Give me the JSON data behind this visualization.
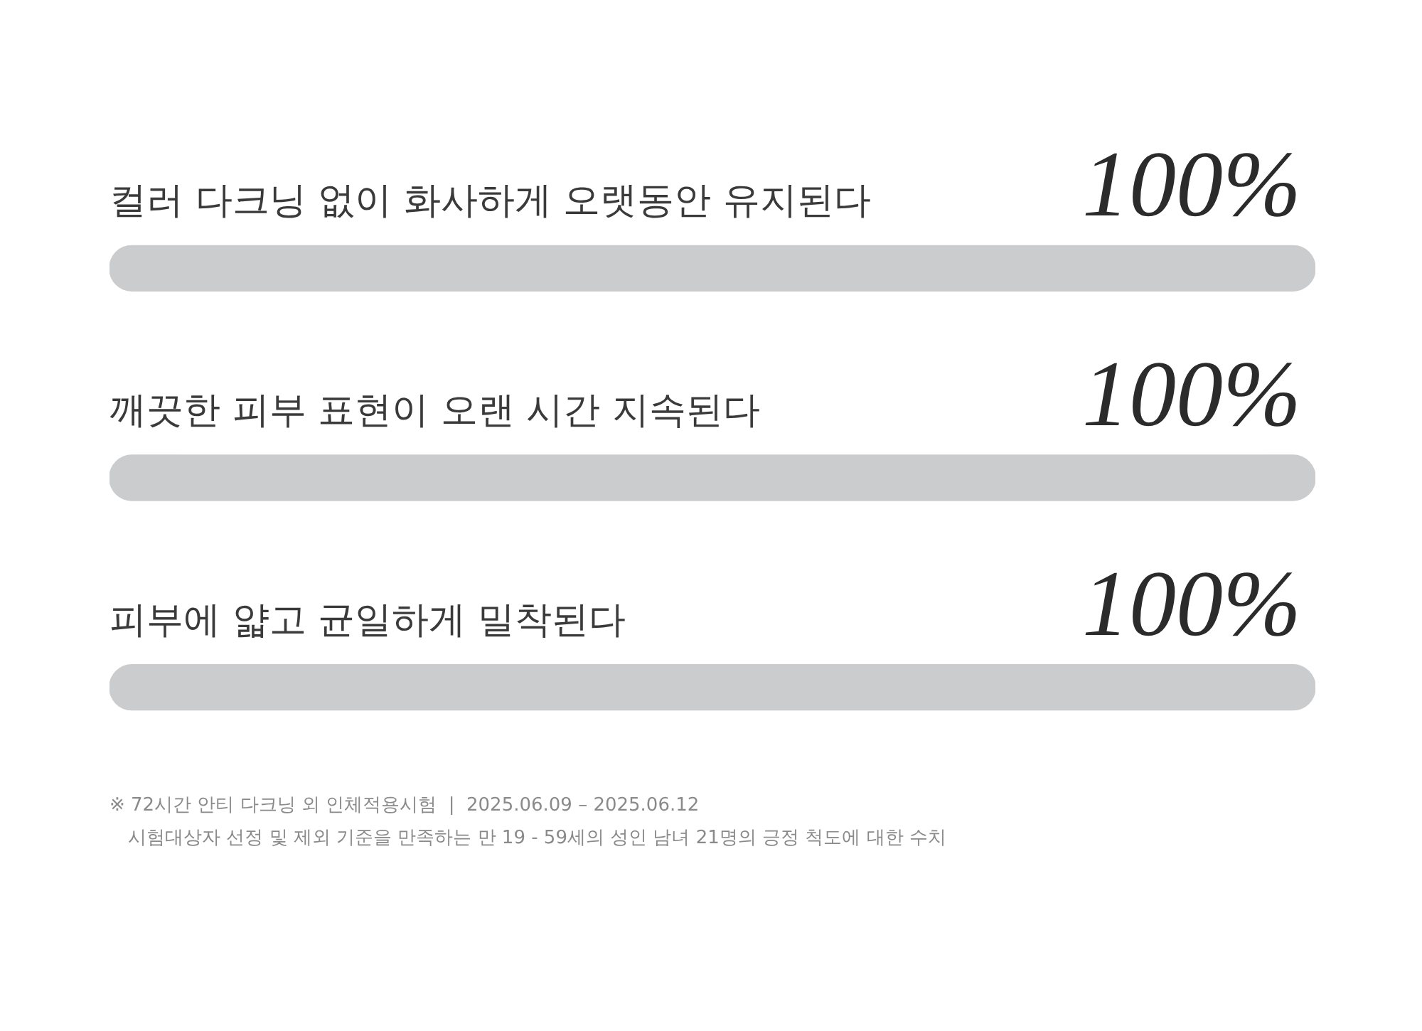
{
  "chart_data": {
    "type": "bar",
    "orientation": "horizontal",
    "categories": [
      "컬러 다크닝 없이 화사하게 오랫동안 유지된다",
      "깨끗한 피부 표현이 오랜 시간 지속된다",
      "피부에 얇고 균일하게 밀착된다"
    ],
    "values": [
      100,
      100,
      100
    ],
    "value_labels": [
      "100%",
      "100%",
      "100%"
    ],
    "color": "#cbccce",
    "annotations": [
      "※ 72시간 안티 다크닝 외 인체적용시험  |  2025.06.09 – 2025.06.12",
      "시험대상자 선정 및 제외 기준을 만족하는 만 19 - 59세의 성인 남녀 21명의 긍정 척도에 대한 수치"
    ]
  }
}
